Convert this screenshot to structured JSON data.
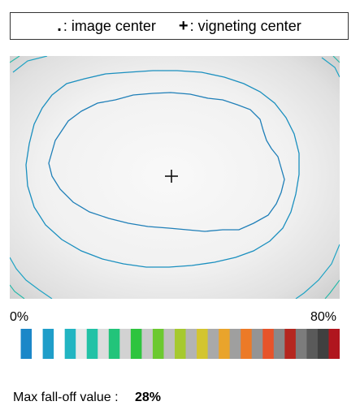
{
  "legend": {
    "image_center_symbol": ".",
    "image_center_label": ": image center",
    "vignetting_center_symbol": "+",
    "vignetting_center_label": ": vigneting center"
  },
  "scale": {
    "min_label": "0%",
    "max_label": "80%",
    "colors": [
      "#ffffff",
      "#1b87c8",
      "#ffffff",
      "#1f9ec9",
      "#ffffff",
      "#22b5c2",
      "#e8e8e8",
      "#22c2a6",
      "#dcdcdc",
      "#22c47a",
      "#d2d2d2",
      "#2ec43e",
      "#c8c8c8",
      "#6cc930",
      "#bebebe",
      "#a6c92f",
      "#b3b3b3",
      "#d3c52f",
      "#a9a9a9",
      "#e9a42c",
      "#9f9f9f",
      "#ec7a27",
      "#949494",
      "#e7542a",
      "#898989",
      "#b5271f",
      "#7c7c7c",
      "#5a5a5a",
      "#404040",
      "#b0161e"
    ]
  },
  "max_falloff": {
    "label": "Max fall-off value :",
    "value": "28%"
  }
}
